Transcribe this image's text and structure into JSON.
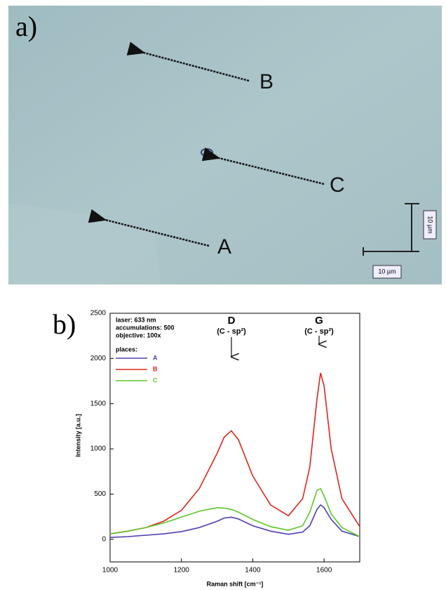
{
  "panel_a": {
    "label": "a)",
    "points": [
      "B",
      "C",
      "A"
    ],
    "scale_bar_labels": [
      "10 µm",
      "10 µm"
    ]
  },
  "panel_b": {
    "label": "b)"
  },
  "chart_data": {
    "type": "line",
    "xlabel": "Raman shift  [cm⁻¹]",
    "ylabel": "Intensity  [a.u.]",
    "annotations": [
      "laser: 633 nm",
      "accumulations: 500",
      "objective: 100x"
    ],
    "peaks": [
      {
        "name": "D",
        "label": "(C - sp²)"
      },
      {
        "name": "G",
        "label": "(C - sp²)"
      }
    ],
    "legend_title": "places:",
    "x": [
      1000,
      1050,
      1100,
      1150,
      1200,
      1250,
      1300,
      1320,
      1340,
      1360,
      1400,
      1450,
      1500,
      1540,
      1560,
      1580,
      1590,
      1600,
      1620,
      1650,
      1700
    ],
    "series": [
      {
        "name": "A",
        "color": "#4b3fb0",
        "values": [
          20,
          30,
          45,
          60,
          85,
          130,
          200,
          235,
          245,
          225,
          150,
          90,
          55,
          80,
          150,
          330,
          380,
          350,
          220,
          90,
          30
        ]
      },
      {
        "name": "B",
        "color": "#e0261a",
        "values": [
          60,
          90,
          130,
          200,
          320,
          560,
          950,
          1130,
          1200,
          1100,
          700,
          380,
          260,
          450,
          800,
          1550,
          1840,
          1700,
          1000,
          450,
          140
        ]
      },
      {
        "name": "C",
        "color": "#5cc72a",
        "values": [
          60,
          90,
          130,
          180,
          245,
          310,
          350,
          345,
          330,
          300,
          220,
          140,
          100,
          150,
          300,
          540,
          560,
          480,
          280,
          130,
          30
        ]
      }
    ],
    "xlim": [
      1000,
      1700
    ],
    "xticks": [
      1000,
      1200,
      1400,
      1600
    ],
    "ylim": [
      -250,
      2500
    ],
    "yticks": [
      0,
      500,
      1000,
      1500,
      2000,
      2500
    ]
  }
}
